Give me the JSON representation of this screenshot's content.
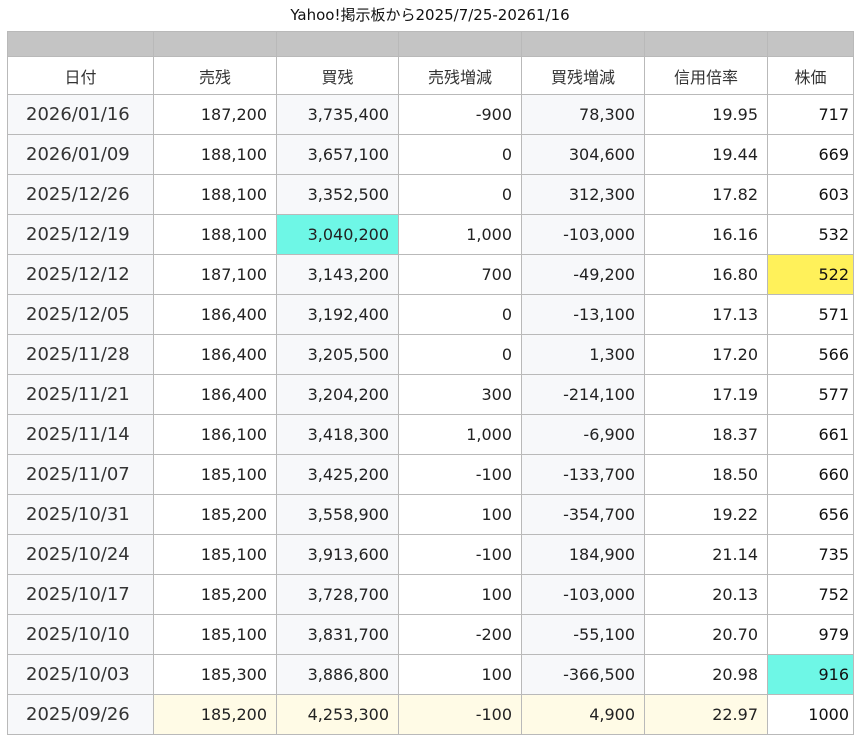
{
  "title": "Yahoo!掲示板から2025/7/25-20261/16",
  "columns": [
    "日付",
    "売残",
    "買残",
    "売残増減",
    "買残増減",
    "信用倍率",
    "株価"
  ],
  "colors": {
    "header_bar": "#c4c4c4",
    "highlight_cyan": "#6ef7e6",
    "highlight_yellow": "#fff15a",
    "highlight_cream": "#fffbe6"
  },
  "rows": [
    {
      "date": "2026/01/16",
      "sell": "187,200",
      "buy": "3,735,400",
      "sell_change": "-900",
      "buy_change": "78,300",
      "ratio": "19.95",
      "price": "717"
    },
    {
      "date": "2026/01/09",
      "sell": "188,100",
      "buy": "3,657,100",
      "sell_change": "0",
      "buy_change": "304,600",
      "ratio": "19.44",
      "price": "669"
    },
    {
      "date": "2025/12/26",
      "sell": "188,100",
      "buy": "3,352,500",
      "sell_change": "0",
      "buy_change": "312,300",
      "ratio": "17.82",
      "price": "603"
    },
    {
      "date": "2025/12/19",
      "sell": "188,100",
      "buy": "3,040,200",
      "sell_change": "1,000",
      "buy_change": "-103,000",
      "ratio": "16.16",
      "price": "532",
      "highlight": {
        "buy": "cyan"
      }
    },
    {
      "date": "2025/12/12",
      "sell": "187,100",
      "buy": "3,143,200",
      "sell_change": "700",
      "buy_change": "-49,200",
      "ratio": "16.80",
      "price": "522",
      "highlight": {
        "price": "yellow"
      }
    },
    {
      "date": "2025/12/05",
      "sell": "186,400",
      "buy": "3,192,400",
      "sell_change": "0",
      "buy_change": "-13,100",
      "ratio": "17.13",
      "price": "571"
    },
    {
      "date": "2025/11/28",
      "sell": "186,400",
      "buy": "3,205,500",
      "sell_change": "0",
      "buy_change": "1,300",
      "ratio": "17.20",
      "price": "566"
    },
    {
      "date": "2025/11/21",
      "sell": "186,400",
      "buy": "3,204,200",
      "sell_change": "300",
      "buy_change": "-214,100",
      "ratio": "17.19",
      "price": "577"
    },
    {
      "date": "2025/11/14",
      "sell": "186,100",
      "buy": "3,418,300",
      "sell_change": "1,000",
      "buy_change": "-6,900",
      "ratio": "18.37",
      "price": "661"
    },
    {
      "date": "2025/11/07",
      "sell": "185,100",
      "buy": "3,425,200",
      "sell_change": "-100",
      "buy_change": "-133,700",
      "ratio": "18.50",
      "price": "660"
    },
    {
      "date": "2025/10/31",
      "sell": "185,200",
      "buy": "3,558,900",
      "sell_change": "100",
      "buy_change": "-354,700",
      "ratio": "19.22",
      "price": "656"
    },
    {
      "date": "2025/10/24",
      "sell": "185,100",
      "buy": "3,913,600",
      "sell_change": "-100",
      "buy_change": "184,900",
      "ratio": "21.14",
      "price": "735"
    },
    {
      "date": "2025/10/17",
      "sell": "185,200",
      "buy": "3,728,700",
      "sell_change": "100",
      "buy_change": "-103,000",
      "ratio": "20.13",
      "price": "752"
    },
    {
      "date": "2025/10/10",
      "sell": "185,100",
      "buy": "3,831,700",
      "sell_change": "-200",
      "buy_change": "-55,100",
      "ratio": "20.70",
      "price": "979"
    },
    {
      "date": "2025/10/03",
      "sell": "185,300",
      "buy": "3,886,800",
      "sell_change": "100",
      "buy_change": "-366,500",
      "ratio": "20.98",
      "price": "916",
      "highlight": {
        "price": "cyan"
      }
    },
    {
      "date": "2025/09/26",
      "sell": "185,200",
      "buy": "4,253,300",
      "sell_change": "-100",
      "buy_change": "4,900",
      "ratio": "22.97",
      "price": "1000",
      "highlight": {
        "sell": "cream",
        "buy": "cream",
        "sell_change": "cream",
        "buy_change": "cream",
        "ratio": "cream"
      }
    }
  ]
}
